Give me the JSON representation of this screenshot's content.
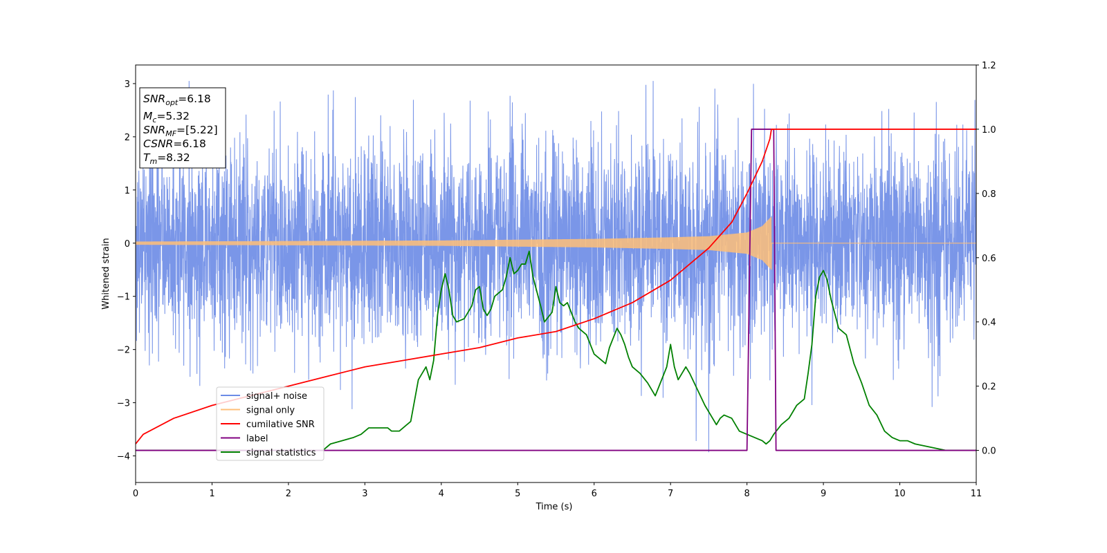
{
  "chart_data": {
    "type": "line",
    "xlabel": "Time (s)",
    "ylabel": "Whitened strain",
    "xlim": [
      0,
      11
    ],
    "ylim_left": [
      -4.5,
      3.35
    ],
    "ylim_right": [
      -0.1,
      1.2
    ],
    "xticks": [
      "0",
      "1",
      "2",
      "3",
      "4",
      "5",
      "6",
      "7",
      "8",
      "9",
      "10",
      "11"
    ],
    "yticks_left": [
      "−4",
      "−3",
      "−2",
      "−1",
      "0",
      "1",
      "2",
      "3"
    ],
    "yticks_right": [
      "0.0",
      "0.2",
      "0.4",
      "0.6",
      "0.8",
      "1.0",
      "1.2"
    ],
    "grid": false,
    "legend_position": "lower-left",
    "annotation": {
      "lines": [
        {
          "main": "SNR",
          "sub": "opt",
          "rest": "=6.18"
        },
        {
          "main": "M",
          "sub": "c",
          "rest": "=5.32"
        },
        {
          "main": "SNR",
          "sub": "MF",
          "rest": "=[5.22]"
        },
        {
          "main": "CSNR",
          "sub": "",
          "rest": "=6.18"
        },
        {
          "main": "T",
          "sub": "m",
          "rest": "=8.32"
        }
      ]
    },
    "series": [
      {
        "name": "signal+ noise",
        "axis": "left",
        "color": "#6b8be6",
        "description_values": {
          "sample_rate_hz": 400,
          "noise_sigma": 0.95,
          "t_start": 0,
          "t_end": 11
        }
      },
      {
        "name": "signal only",
        "axis": "left",
        "color": "#ffbf78",
        "amplitude_at_time": {
          "t": [
            0,
            2,
            4,
            6,
            7,
            7.5,
            8,
            8.2,
            8.32
          ],
          "amp": [
            0.03,
            0.04,
            0.05,
            0.08,
            0.11,
            0.13,
            0.2,
            0.32,
            0.5
          ]
        },
        "merger_time": 8.32
      },
      {
        "name": "cumilative SNR",
        "axis": "right",
        "color": "#ff0000",
        "x": [
          0,
          0.1,
          0.5,
          1,
          1.5,
          2,
          2.5,
          3,
          3.5,
          4,
          4.5,
          5,
          5.5,
          6,
          6.5,
          7,
          7.5,
          7.8,
          8,
          8.1,
          8.2,
          8.3,
          8.32,
          11
        ],
        "y": [
          0.02,
          0.05,
          0.1,
          0.14,
          0.17,
          0.2,
          0.23,
          0.26,
          0.28,
          0.3,
          0.32,
          0.35,
          0.37,
          0.41,
          0.46,
          0.53,
          0.63,
          0.71,
          0.8,
          0.85,
          0.9,
          0.97,
          1.0,
          1.0
        ]
      },
      {
        "name": "label",
        "axis": "right",
        "color": "#800080",
        "x": [
          0,
          8.0,
          8.06,
          8.35,
          8.38,
          11
        ],
        "y": [
          0,
          0,
          1,
          1,
          0,
          0
        ]
      },
      {
        "name": "signal statistics",
        "axis": "right",
        "color": "#008000",
        "x": [
          0,
          2.45,
          2.55,
          2.7,
          2.85,
          2.95,
          3.0,
          3.05,
          3.1,
          3.2,
          3.3,
          3.35,
          3.45,
          3.55,
          3.6,
          3.7,
          3.75,
          3.8,
          3.85,
          3.9,
          3.95,
          4.0,
          4.05,
          4.1,
          4.15,
          4.2,
          4.3,
          4.4,
          4.45,
          4.5,
          4.55,
          4.6,
          4.65,
          4.7,
          4.8,
          4.85,
          4.9,
          4.95,
          5.0,
          5.05,
          5.1,
          5.15,
          5.2,
          5.3,
          5.35,
          5.45,
          5.5,
          5.55,
          5.6,
          5.65,
          5.7,
          5.75,
          5.8,
          5.9,
          6.0,
          6.1,
          6.15,
          6.2,
          6.25,
          6.3,
          6.35,
          6.4,
          6.45,
          6.5,
          6.6,
          6.7,
          6.8,
          6.85,
          6.95,
          7.0,
          7.05,
          7.1,
          7.15,
          7.2,
          7.25,
          7.35,
          7.45,
          7.55,
          7.6,
          7.65,
          7.7,
          7.8,
          7.9,
          8.0,
          8.1,
          8.2,
          8.25,
          8.3,
          8.35,
          8.45,
          8.55,
          8.65,
          8.75,
          8.8,
          8.85,
          8.9,
          8.95,
          9.0,
          9.05,
          9.1,
          9.2,
          9.3,
          9.4,
          9.5,
          9.6,
          9.7,
          9.8,
          9.9,
          10.0,
          10.1,
          10.2,
          10.4,
          10.6,
          10.8,
          11.0
        ],
        "y": [
          0.0,
          0.0,
          0.02,
          0.03,
          0.04,
          0.05,
          0.06,
          0.07,
          0.07,
          0.07,
          0.07,
          0.06,
          0.06,
          0.08,
          0.09,
          0.22,
          0.24,
          0.26,
          0.22,
          0.28,
          0.42,
          0.5,
          0.55,
          0.5,
          0.42,
          0.4,
          0.41,
          0.45,
          0.5,
          0.51,
          0.44,
          0.42,
          0.44,
          0.48,
          0.5,
          0.54,
          0.6,
          0.55,
          0.56,
          0.58,
          0.58,
          0.62,
          0.54,
          0.45,
          0.4,
          0.43,
          0.51,
          0.46,
          0.45,
          0.46,
          0.43,
          0.4,
          0.38,
          0.36,
          0.3,
          0.28,
          0.27,
          0.32,
          0.35,
          0.38,
          0.36,
          0.33,
          0.29,
          0.26,
          0.24,
          0.21,
          0.17,
          0.2,
          0.26,
          0.33,
          0.26,
          0.22,
          0.24,
          0.26,
          0.24,
          0.19,
          0.14,
          0.1,
          0.08,
          0.1,
          0.11,
          0.1,
          0.06,
          0.05,
          0.04,
          0.03,
          0.02,
          0.03,
          0.05,
          0.08,
          0.1,
          0.14,
          0.16,
          0.24,
          0.33,
          0.48,
          0.54,
          0.56,
          0.53,
          0.47,
          0.38,
          0.36,
          0.27,
          0.21,
          0.14,
          0.11,
          0.06,
          0.04,
          0.03,
          0.03,
          0.02,
          0.01,
          0.0,
          0.0,
          0.0
        ]
      }
    ]
  }
}
